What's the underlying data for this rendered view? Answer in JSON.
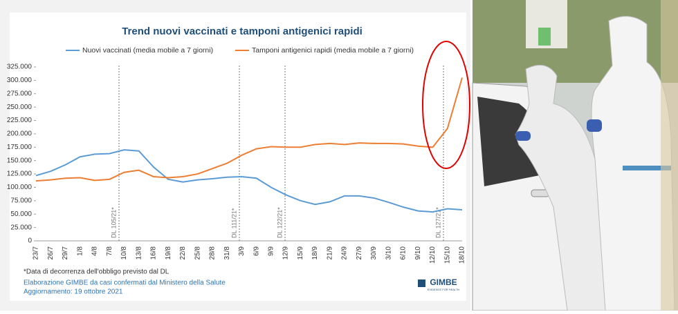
{
  "chart_data": {
    "type": "line",
    "title": "Trend nuovi vaccinati e tamponi antigenici rapidi",
    "categories": [
      "23/7",
      "26/7",
      "29/7",
      "1/8",
      "4/8",
      "7/8",
      "10/8",
      "13/8",
      "16/8",
      "19/8",
      "22/8",
      "25/8",
      "28/8",
      "31/8",
      "3/9",
      "6/9",
      "9/9",
      "12/9",
      "15/9",
      "18/9",
      "21/9",
      "24/9",
      "27/9",
      "30/9",
      "3/10",
      "6/10",
      "9/10",
      "12/10",
      "15/10",
      "18/10"
    ],
    "series": [
      {
        "name": "Nuovi vaccinati (media mobile a 7 giorni)",
        "color": "#5b9bd5",
        "values": [
          122000,
          130000,
          142000,
          157000,
          162000,
          163000,
          170000,
          168000,
          138000,
          115000,
          110000,
          114000,
          116000,
          119000,
          120000,
          117000,
          100000,
          86000,
          75000,
          68000,
          73000,
          84000,
          84000,
          80000,
          72000,
          63000,
          56000,
          54000,
          60000,
          58000
        ]
      },
      {
        "name": "Tamponi antigenici rapidi (media mobile a 7 giorni)",
        "color": "#ed7d31",
        "values": [
          112000,
          114000,
          117000,
          118000,
          113000,
          115000,
          128000,
          132000,
          120000,
          118000,
          120000,
          125000,
          135000,
          145000,
          160000,
          172000,
          176000,
          175000,
          175000,
          180000,
          182000,
          180000,
          183000,
          182000,
          182000,
          181000,
          177000,
          175000,
          210000,
          305000
        ]
      }
    ],
    "ylim": [
      0,
      325000
    ],
    "yticks": [
      {
        "value": 0,
        "label": "0"
      },
      {
        "value": 25000,
        "label": "25.000"
      },
      {
        "value": 50000,
        "label": "50.000"
      },
      {
        "value": 75000,
        "label": "75.000"
      },
      {
        "value": 100000,
        "label": "100.000"
      },
      {
        "value": 125000,
        "label": "125.000"
      },
      {
        "value": 150000,
        "label": "150.000"
      },
      {
        "value": 175000,
        "label": "175.000"
      },
      {
        "value": 200000,
        "label": "200.000"
      },
      {
        "value": 225000,
        "label": "225.000"
      },
      {
        "value": 250000,
        "label": "250.000"
      },
      {
        "value": 275000,
        "label": "275.000"
      },
      {
        "value": 300000,
        "label": "300.000"
      },
      {
        "value": 325000,
        "label": "325.000"
      }
    ],
    "annotations": [
      "DL 105/21*",
      "DL 111/21*",
      "DL 122/21*",
      "DL 127/21*"
    ],
    "footnote": "*Data di decorrenza dell'obbligo previsto dal DL",
    "source": "Elaborazione GIMBE da casi confermati dal Ministero della Salute",
    "updated": "Aggiornamento: 19 ottobre 2021",
    "logo": "GIMBE",
    "logo_tagline": "EVIDENCE FOR HEALTH"
  }
}
